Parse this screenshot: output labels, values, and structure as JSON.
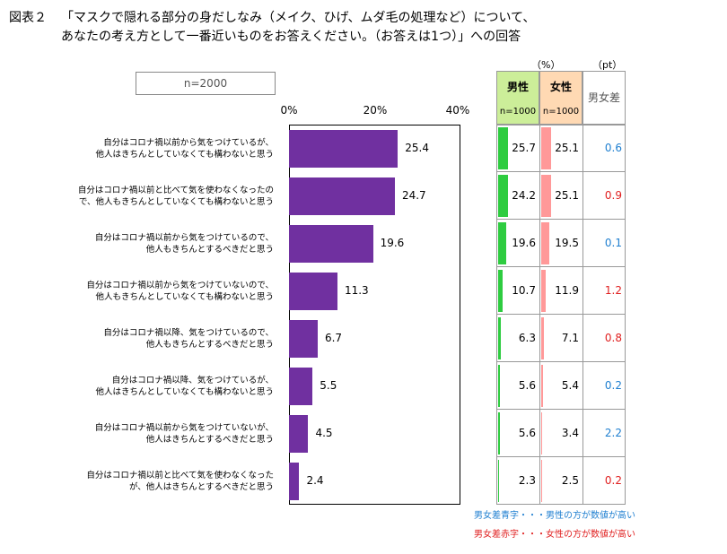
{
  "title": {
    "label": "図表２",
    "line1": "「マスクで隠れる部分の身だしなみ（メイク、ひげ、ムダ毛の処理など）について、",
    "line2": "あなたの考え方として一番近いものをお答えください。（お答えは1つ）」への回答"
  },
  "sample": "n=2000",
  "table": {
    "pct_unit": "（%）",
    "pt_unit": "（pt）",
    "male_header": "男性",
    "male_n": "n=1000",
    "female_header": "女性",
    "female_n": "n=1000",
    "diff_header": "男女差"
  },
  "legend": {
    "blue_note": "男女差青字・・・男性の方が数値が高い",
    "red_note": "男女差赤字・・・女性の方が数値が高い"
  },
  "colors": {
    "bar": "#7030a0",
    "male": "#2ecc40",
    "female": "#ff9999",
    "male_header_bg": "#ccee99",
    "female_header_bg": "#ffd9b3",
    "blue": "#1f7fd0",
    "red": "#e02020"
  },
  "chart_data": {
    "type": "bar",
    "orientation": "horizontal",
    "title": "「マスクで隠れる部分の身だしなみ（メイク、ひげ、ムダ毛の処理など）について、あなたの考え方として一番近いものをお答えください。（お答えは1つ）」への回答",
    "xlim": [
      0,
      40
    ],
    "ticks": [
      "0%",
      "20%",
      "40%"
    ],
    "categories": [
      "自分はコロナ禍以前から気をつけているが、\n他人はきちんとしていなくても構わないと思う",
      "自分はコロナ禍以前と比べて気を使わなくなったの\nで、他人もきちんとしていなくても構わないと思う",
      "自分はコロナ禍以前から気をつけているので、\n他人もきちんとするべきだと思う",
      "自分はコロナ禍以前から気をつけていないので、\n他人もきちんとしていなくても構わないと思う",
      "自分はコロナ禍以降、気をつけているので、\n他人もきちんとするべきだと思う",
      "自分はコロナ禍以降、気をつけているが、\n他人はきちんとしていなくても構わないと思う",
      "自分はコロナ禍以前から気をつけていないが、\n他人はきちんとするべきだと思う",
      "自分はコロナ禍以前と比べて気を使わなくなった\nが、他人はきちんとするべきだと思う"
    ],
    "values": [
      25.4,
      24.7,
      19.6,
      11.3,
      6.7,
      5.5,
      4.5,
      2.4
    ],
    "value_labels": [
      "25.4",
      "24.7",
      "19.6",
      "11.3",
      "6.7",
      "5.5",
      "4.5",
      "2.4"
    ],
    "series": [
      {
        "name": "男性",
        "values": [
          25.7,
          24.2,
          19.6,
          10.7,
          6.3,
          5.6,
          5.6,
          2.3
        ],
        "labels": [
          "25.7",
          "24.2",
          "19.6",
          "10.7",
          "6.3",
          "5.6",
          "5.6",
          "2.3"
        ]
      },
      {
        "name": "女性",
        "values": [
          25.1,
          25.1,
          19.5,
          11.9,
          7.1,
          5.4,
          3.4,
          2.5
        ],
        "labels": [
          "25.1",
          "25.1",
          "19.5",
          "11.9",
          "7.1",
          "5.4",
          "3.4",
          "2.5"
        ]
      }
    ],
    "diff": {
      "labels": [
        "0.6",
        "0.9",
        "0.1",
        "1.2",
        "0.8",
        "0.2",
        "2.2",
        "0.2"
      ],
      "color": [
        "blue",
        "red",
        "blue",
        "red",
        "red",
        "blue",
        "blue",
        "red"
      ]
    }
  }
}
